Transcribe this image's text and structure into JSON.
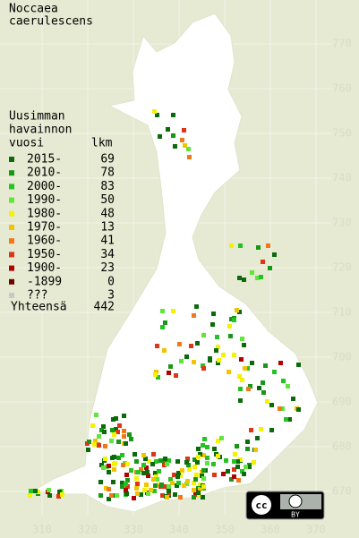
{
  "title": [
    "Noccaea",
    "caerulescens"
  ],
  "legend": {
    "header": [
      "Uusimman",
      "havainnon"
    ],
    "year_label": "vuosi",
    "count_label": "lkm",
    "rows": [
      {
        "label": "2015-",
        "count": 69,
        "color": "#0b6b0b"
      },
      {
        "label": "2010-",
        "count": 78,
        "color": "#169816"
      },
      {
        "label": "2000-",
        "count": 83,
        "color": "#22c422"
      },
      {
        "label": "1990-",
        "count": 50,
        "color": "#5ee63a"
      },
      {
        "label": "1980-",
        "count": 48,
        "color": "#f5f200"
      },
      {
        "label": "1970-",
        "count": 13,
        "color": "#f2c400"
      },
      {
        "label": "1960-",
        "count": 41,
        "color": "#f07818"
      },
      {
        "label": "1950-",
        "count": 34,
        "color": "#e03418"
      },
      {
        "label": "1900-",
        "count": 23,
        "color": "#b40000"
      },
      {
        "label": "-1899",
        "count": 0,
        "color": "#6e0000"
      },
      {
        "label": "???",
        "count": 3,
        "color": "#c8c8c8"
      }
    ],
    "total_label": "Yhteensä",
    "total": 442
  },
  "x_ticks": [
    310,
    320,
    330,
    340,
    350,
    360,
    370
  ],
  "y_ticks": [
    670,
    680,
    690,
    700,
    710,
    720,
    730,
    740,
    750,
    760,
    770
  ],
  "license": {
    "cc": "cc",
    "by": "BY"
  }
}
